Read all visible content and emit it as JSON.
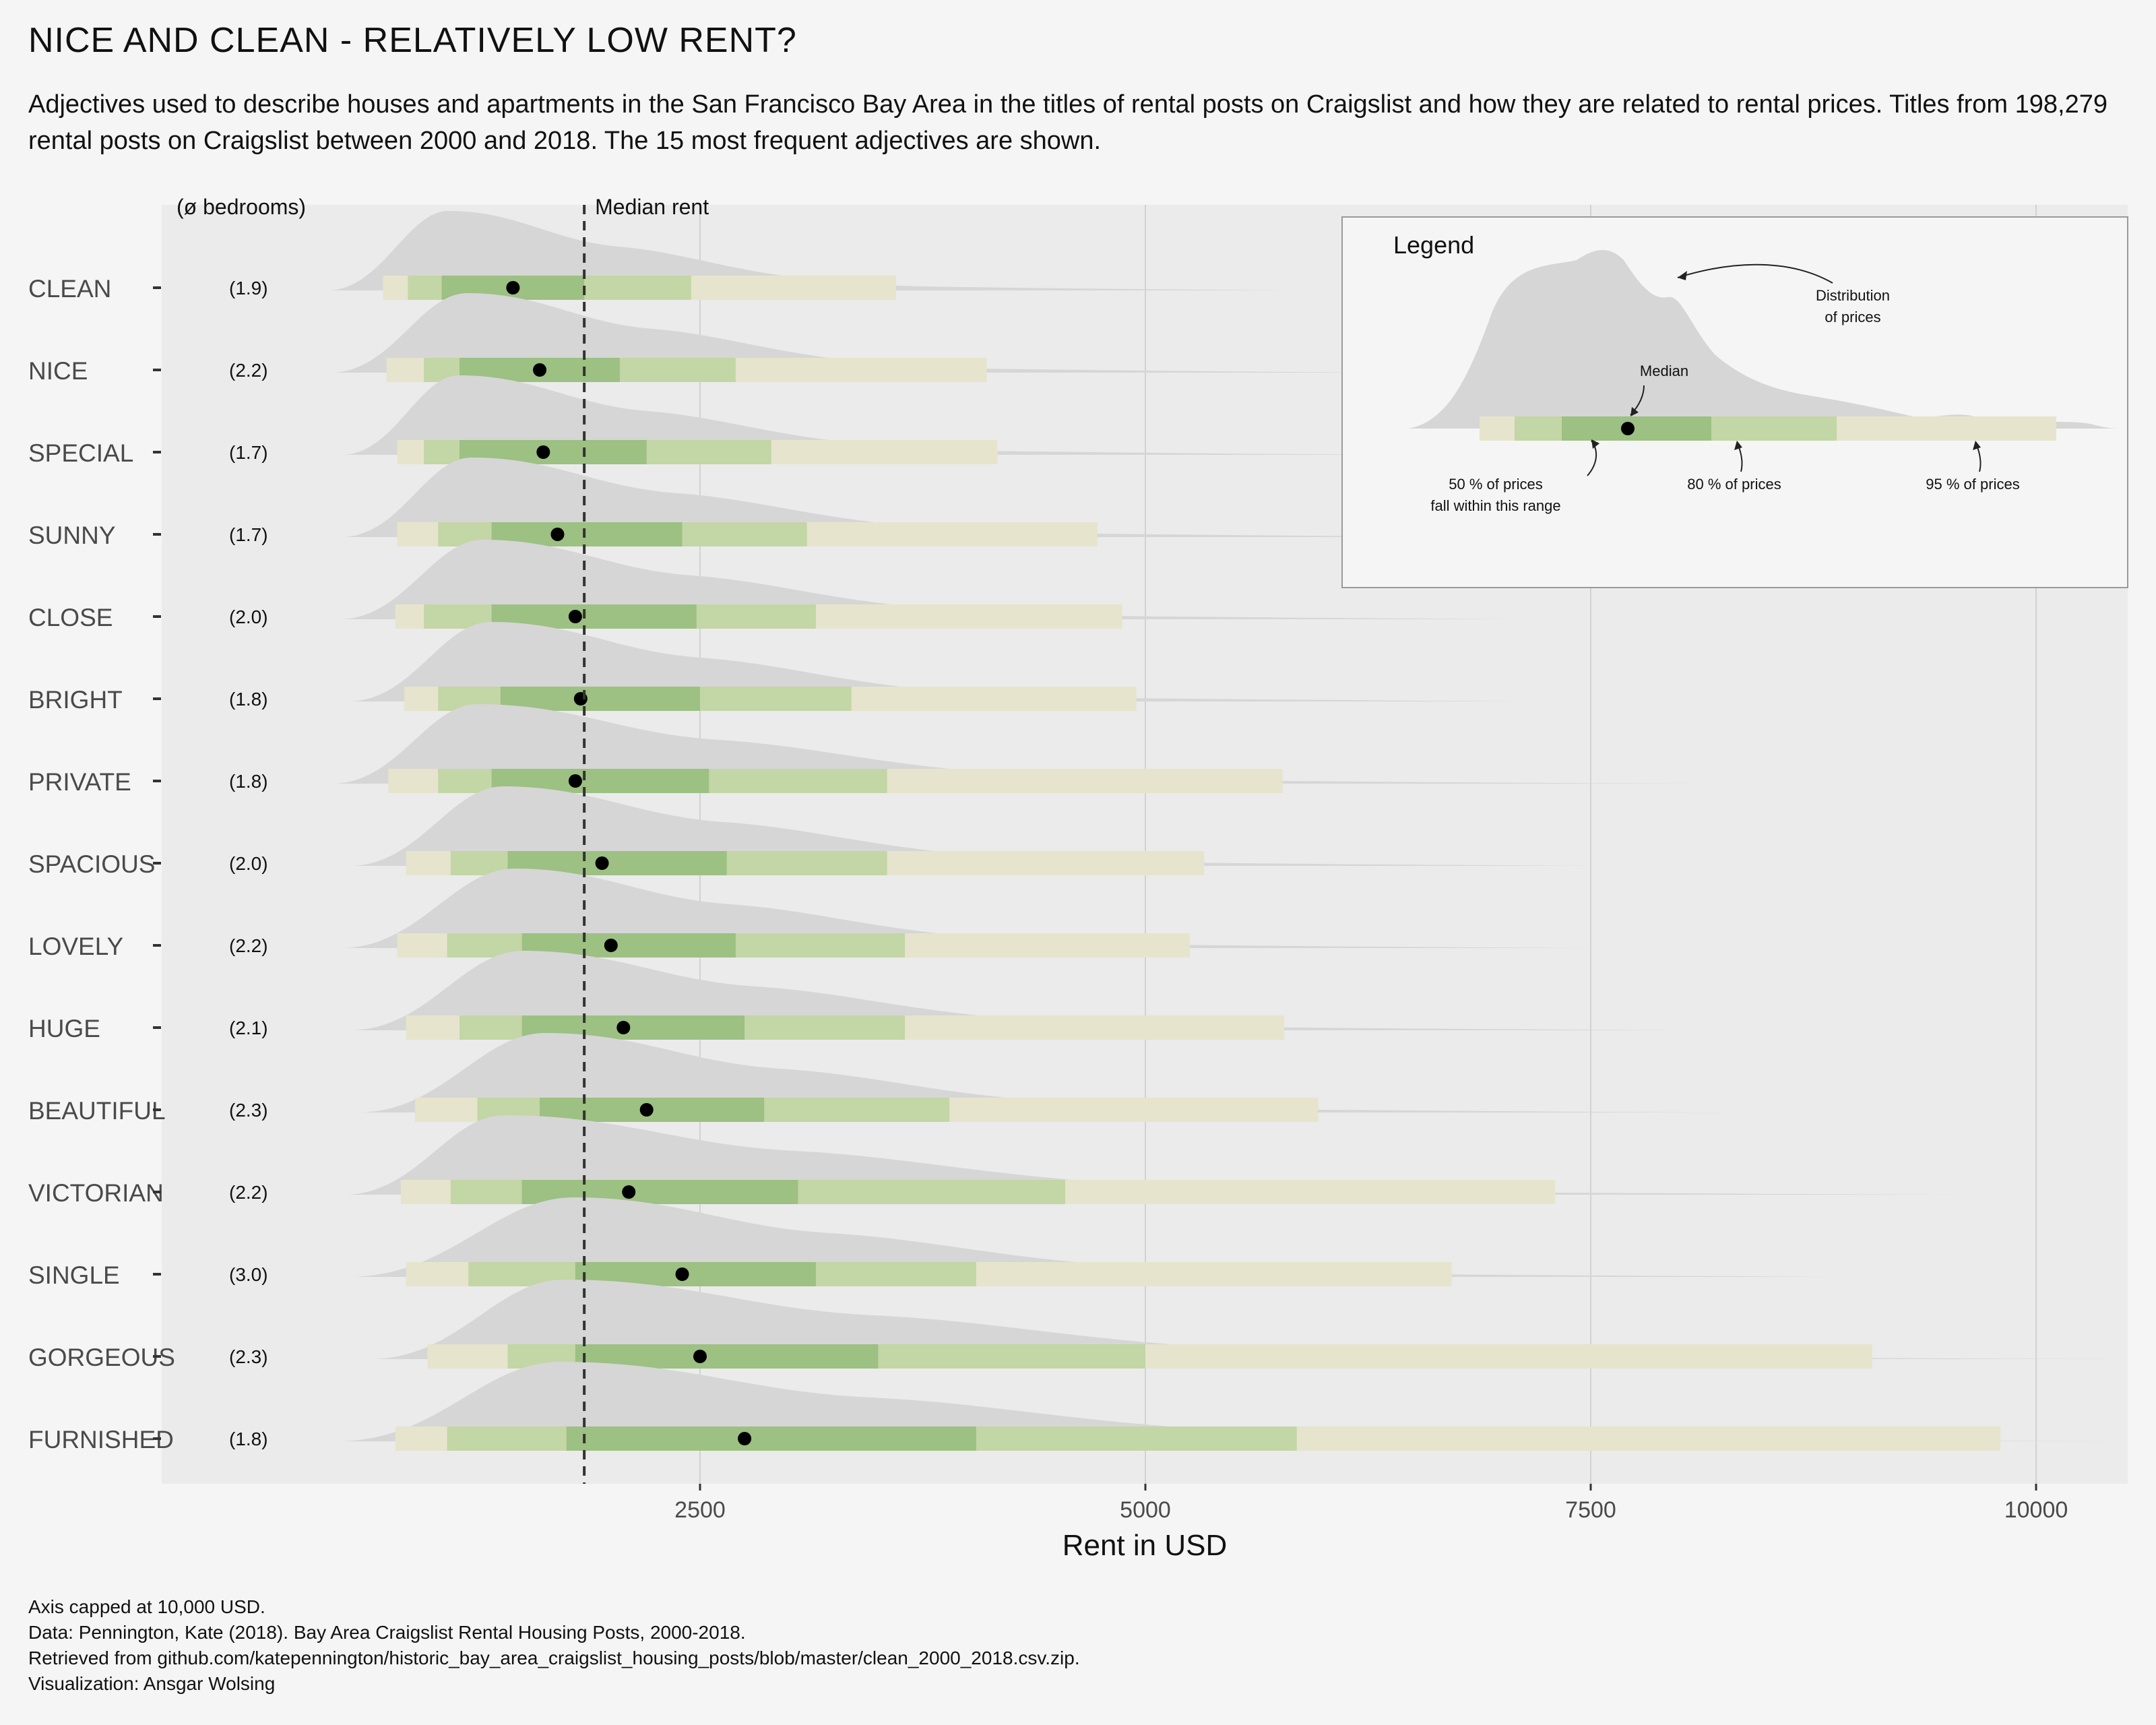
{
  "title": "NICE AND CLEAN - RELATIVELY LOW RENT?",
  "subtitle": "Adjectives used to describe houses and apartments in the San Francisco Bay Area in the titles of rental posts on Craigslist and how they are related to rental prices. Titles from 198,279 rental posts on Craigslist between 2000 and 2018. The 15 most frequent adjectives are shown.",
  "caption": [
    "Axis capped at 10,000 USD.",
    "Data: Pennington, Kate (2018). Bay Area Craigslist Rental Housing Posts, 2000-2018.",
    "Retrieved from github.com/katepennington/historic_bay_area_craigslist_housing_posts/blob/master/clean_2000_2018.csv.zip.",
    "Visualization: Ansgar Wolsing"
  ],
  "colors": {
    "background": "#f5f5f5",
    "panel": "#ebebeb",
    "density": "#d6d6d6",
    "range95": "#e6e4cd",
    "range80": "#c3d6a5",
    "range50": "#9dc083",
    "median_point": "#000000"
  },
  "chart_data": {
    "type": "interval",
    "xlabel": "Rent in USD",
    "xlim": [
      -3000,
      10500
    ],
    "xticks": [
      2500,
      5000,
      7500,
      10000
    ],
    "grid": true,
    "overall_median": 1850,
    "overall_median_label": "Median rent",
    "bedrooms_header": "(ø bedrooms)",
    "categories": [
      "CLEAN",
      "NICE",
      "SPECIAL",
      "SUNNY",
      "CLOSE",
      "BRIGHT",
      "PRIVATE",
      "SPACIOUS",
      "LOVELY",
      "HUGE",
      "BEAUTIFUL",
      "VICTORIAN",
      "SINGLE",
      "GORGEOUS",
      "FURNISHED"
    ],
    "bedrooms": [
      "(1.9)",
      "(2.2)",
      "(1.7)",
      "(1.7)",
      "(2.0)",
      "(1.8)",
      "(1.8)",
      "(2.0)",
      "(2.2)",
      "(2.1)",
      "(2.3)",
      "(2.2)",
      "(3.0)",
      "(2.3)",
      "(1.8)"
    ],
    "median": [
      1450,
      1600,
      1620,
      1700,
      1800,
      1830,
      1800,
      1950,
      2000,
      2070,
      2200,
      2100,
      2400,
      2500,
      2750
    ],
    "range50": [
      [
        1050,
        1850
      ],
      [
        1150,
        2050
      ],
      [
        1150,
        2200
      ],
      [
        1330,
        2400
      ],
      [
        1330,
        2480
      ],
      [
        1380,
        2500
      ],
      [
        1330,
        2550
      ],
      [
        1420,
        2650
      ],
      [
        1500,
        2700
      ],
      [
        1500,
        2750
      ],
      [
        1600,
        2860
      ],
      [
        1500,
        3050
      ],
      [
        1800,
        3150
      ],
      [
        1800,
        3500
      ],
      [
        1750,
        4050
      ]
    ],
    "range80": [
      [
        860,
        2450
      ],
      [
        950,
        2700
      ],
      [
        950,
        2900
      ],
      [
        1030,
        3100
      ],
      [
        950,
        3150
      ],
      [
        1030,
        3350
      ],
      [
        1030,
        3550
      ],
      [
        1100,
        3550
      ],
      [
        1080,
        3650
      ],
      [
        1150,
        3650
      ],
      [
        1250,
        3900
      ],
      [
        1100,
        4550
      ],
      [
        1200,
        4050
      ],
      [
        1420,
        5000
      ],
      [
        1080,
        5850
      ]
    ],
    "range95": [
      [
        720,
        3600
      ],
      [
        740,
        4110
      ],
      [
        800,
        4170
      ],
      [
        800,
        4730
      ],
      [
        790,
        4870
      ],
      [
        840,
        4950
      ],
      [
        750,
        5770
      ],
      [
        850,
        5330
      ],
      [
        800,
        5250
      ],
      [
        850,
        5780
      ],
      [
        900,
        5970
      ],
      [
        820,
        7300
      ],
      [
        850,
        6720
      ],
      [
        970,
        9080
      ],
      [
        790,
        9800
      ]
    ],
    "legend": {
      "title": "Legend",
      "labels": {
        "distribution": [
          "Distribution",
          "of prices"
        ],
        "median": "Median",
        "p50": [
          "50 % of prices",
          "fall within this range"
        ],
        "p80": "80 % of prices",
        "p95": "95 % of prices"
      }
    }
  }
}
